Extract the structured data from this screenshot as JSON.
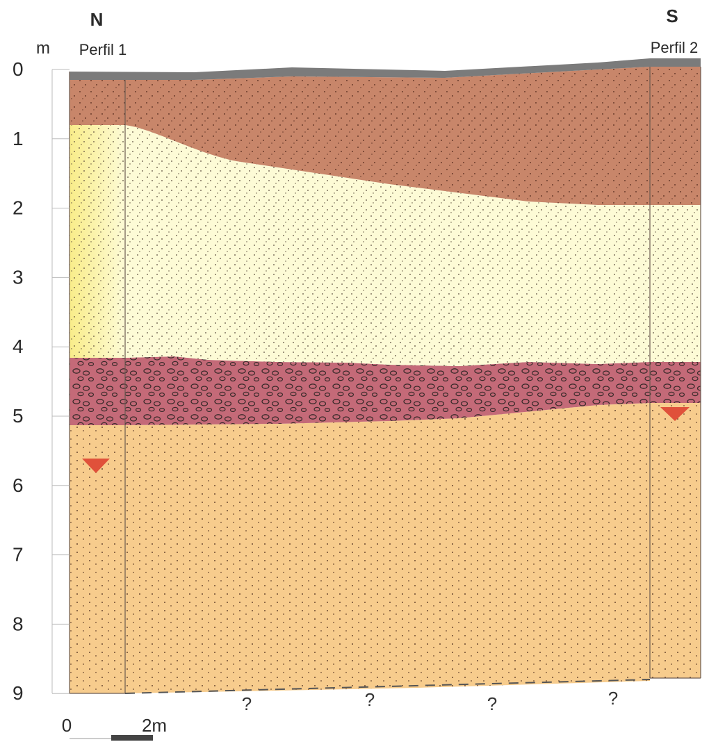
{
  "header": {
    "north_label": "N",
    "south_label": "S",
    "profile_left": "Perfil 1",
    "profile_right": "Perfil 2"
  },
  "depth_axis": {
    "unit": "m",
    "ticks": [
      "0",
      "1",
      "2",
      "3",
      "4",
      "5",
      "6",
      "7",
      "8",
      "9"
    ]
  },
  "unknown_markers": [
    "?",
    "?",
    "?",
    "?"
  ],
  "scale_bar": {
    "start_label": "0",
    "end_label": "2m"
  },
  "layers": [
    {
      "id": "surface",
      "color": "#7b7b7b"
    },
    {
      "id": "brown-soil",
      "color": "#c8866a"
    },
    {
      "id": "pale-sand",
      "color": "#fdfbd6"
    },
    {
      "id": "gravel",
      "color": "#c46a78"
    },
    {
      "id": "orange-sand",
      "color": "#f7cc8d"
    }
  ],
  "water_table_color": "#e0513a"
}
